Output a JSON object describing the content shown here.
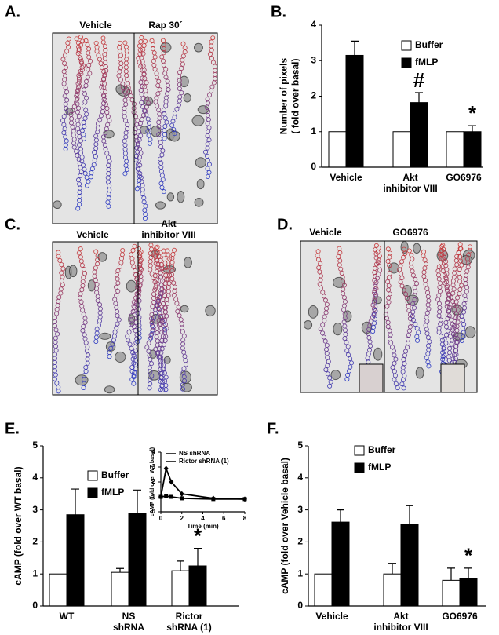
{
  "panel_labels": [
    "A.",
    "B.",
    "C.",
    "D.",
    "E.",
    "F."
  ],
  "images": [
    {
      "conditions": [
        [
          "Vehicle"
        ],
        [
          "Rap 30´"
        ]
      ]
    },
    {
      "conditions": [
        [
          "Vehicle"
        ],
        [
          "Akt",
          "inhibitor VIII"
        ]
      ]
    },
    {
      "conditions": [
        [
          "Vehicle"
        ],
        [
          "GO6976"
        ]
      ]
    }
  ],
  "chart_data": [
    {
      "type": "bar",
      "ylabel": [
        "Number of pixels",
        "( fold over basal)"
      ],
      "categories": [
        [
          "Vehicle"
        ],
        [
          "Akt",
          "inhibitor VIII"
        ],
        [
          "GO6976"
        ]
      ],
      "series": [
        {
          "name": "Buffer",
          "color": "#ffffff",
          "values": [
            1,
            1,
            1
          ],
          "errors": [
            null,
            null,
            null
          ],
          "significance": [
            null,
            null,
            null
          ]
        },
        {
          "name": "fMLP",
          "color": "#000000",
          "values": [
            3.15,
            1.82,
            1.0
          ],
          "errors": [
            0.4,
            0.28,
            0.17
          ],
          "significance": [
            null,
            "#",
            "*"
          ]
        }
      ],
      "ylim": [
        0,
        4
      ],
      "yticks": [
        0,
        1,
        2,
        3,
        4
      ]
    },
    {
      "type": "bar",
      "ylabel": [
        "cAMP (fold over WT basal)"
      ],
      "categories": [
        [
          "WT"
        ],
        [
          "NS",
          "shRNA"
        ],
        [
          "Rictor",
          "shRNA (1)"
        ]
      ],
      "series": [
        {
          "name": "Buffer",
          "color": "#ffffff",
          "values": [
            1,
            1.05,
            1.1
          ],
          "errors": [
            null,
            0.12,
            0.3
          ],
          "significance": [
            null,
            null,
            null
          ]
        },
        {
          "name": "fMLP",
          "color": "#000000",
          "values": [
            2.85,
            2.9,
            1.25
          ],
          "errors": [
            0.8,
            0.72,
            0.55
          ],
          "significance": [
            null,
            null,
            "*"
          ]
        }
      ],
      "ylim": [
        0,
        5
      ],
      "yticks": [
        0,
        1,
        2,
        3,
        4,
        5
      ]
    },
    {
      "type": "line",
      "ylabel": [
        "cAMP (fold over WT basal)"
      ],
      "xlabel": "Time (min)",
      "x": [
        0,
        0.5,
        1,
        2,
        5,
        8
      ],
      "series": [
        {
          "name": "NS shRNA",
          "color": "#000000",
          "marker": "diamond",
          "values": [
            1,
            2.9,
            2,
            1.2,
            0.9,
            0.85
          ]
        },
        {
          "name": "Rictor shRNA (1)",
          "color": "#000000",
          "marker": "square",
          "values": [
            1,
            1.05,
            1,
            0.9,
            0.85,
            0.85
          ]
        }
      ],
      "xlim": [
        0,
        8
      ],
      "xticks": [
        0,
        2,
        4,
        6,
        8
      ],
      "ylim": [
        0,
        4
      ],
      "yticks": [
        0,
        1,
        2,
        3,
        4
      ]
    },
    {
      "type": "bar",
      "ylabel": [
        "cAMP (fold over Vehicle basal)"
      ],
      "categories": [
        [
          "Vehicle"
        ],
        [
          "Akt",
          "inhibitor VIII"
        ],
        [
          "GO6976"
        ]
      ],
      "series": [
        {
          "name": "Buffer",
          "color": "#ffffff",
          "values": [
            1,
            1,
            0.8
          ],
          "errors": [
            null,
            0.33,
            0.38
          ],
          "significance": [
            null,
            null,
            null
          ]
        },
        {
          "name": "fMLP",
          "color": "#000000",
          "values": [
            2.62,
            2.55,
            0.85
          ],
          "errors": [
            0.38,
            0.58,
            0.33
          ],
          "significance": [
            null,
            null,
            "*"
          ]
        }
      ],
      "ylim": [
        0,
        5
      ],
      "yticks": [
        0,
        1,
        2,
        3,
        4,
        5
      ]
    }
  ]
}
